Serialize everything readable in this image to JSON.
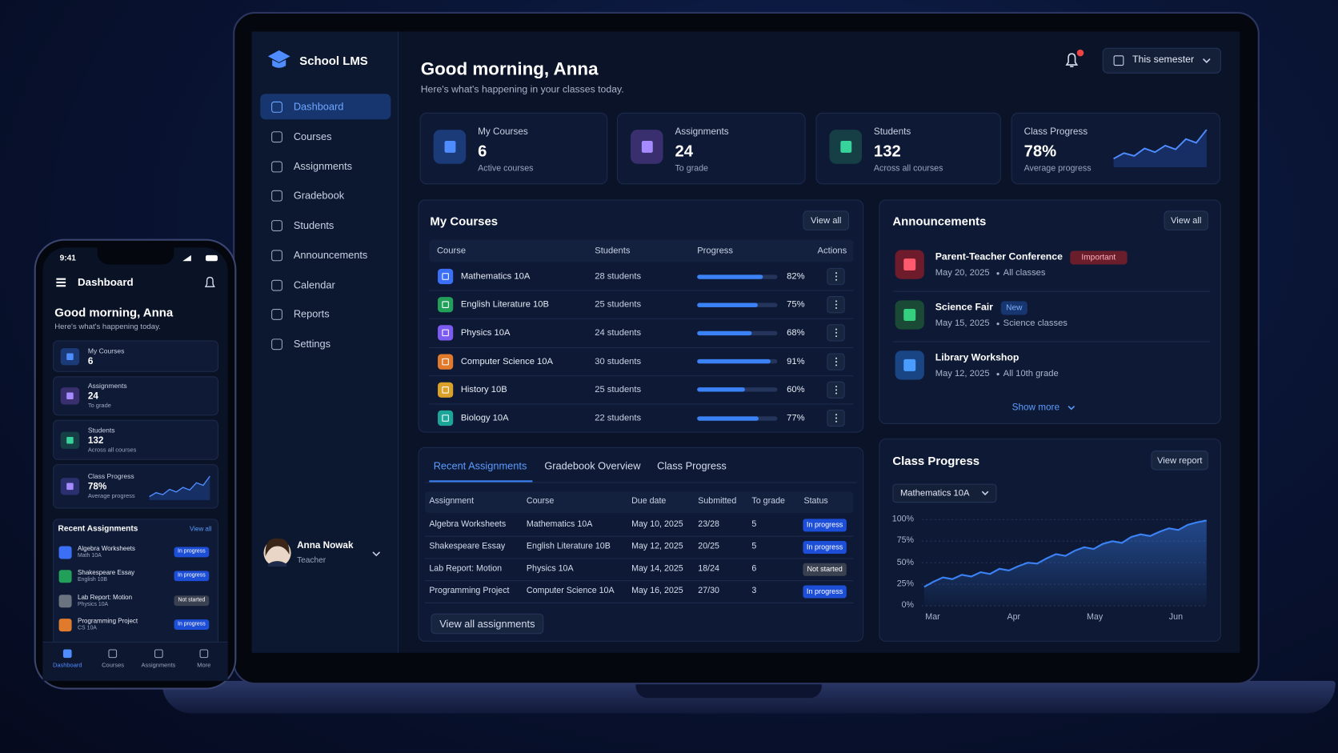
{
  "sidebar": {
    "brand": "School LMS",
    "nav": [
      "Dashboard",
      "Courses",
      "Assignments",
      "Gradebook",
      "Students",
      "Announcements",
      "Calendar",
      "Reports",
      "Settings"
    ],
    "active": 0,
    "user": {
      "name": "Anna Nowak",
      "role": "Teacher"
    }
  },
  "header": {
    "greeting": "Good morning, Anna",
    "subtitle": "Here's what's happening in your classes today.",
    "period": "This semester"
  },
  "stats": [
    {
      "label": "My Courses",
      "value": "6",
      "note": "Active courses",
      "color": "#4f8cff",
      "bg": "#1b3a78"
    },
    {
      "label": "Assignments",
      "value": "24",
      "note": "To grade",
      "color": "#a58bff",
      "bg": "#3a2f6e"
    },
    {
      "label": "Students",
      "value": "132",
      "note": "Across all courses",
      "color": "#37d39a",
      "bg": "#163f45"
    },
    {
      "label": "Class Progress",
      "value": "78%",
      "note": "Average progress",
      "spark": [
        30,
        42,
        36,
        52,
        44,
        58,
        50,
        72,
        64,
        92
      ]
    }
  ],
  "courses": {
    "title": "My Courses",
    "action": "View all",
    "columns": [
      "Course",
      "Students",
      "Progress",
      "Actions"
    ],
    "rows": [
      {
        "name": "Mathematics 10A",
        "students": "28 students",
        "progress": 82,
        "progress_label": "82%",
        "color": "#3b6ff5"
      },
      {
        "name": "English Literature 10B",
        "students": "25 students",
        "progress": 75,
        "progress_label": "75%",
        "color": "#22a05a"
      },
      {
        "name": "Physics 10A",
        "students": "24 students",
        "progress": 68,
        "progress_label": "68%",
        "color": "#7c5cf0"
      },
      {
        "name": "Computer Science 10A",
        "students": "30 students",
        "progress": 91,
        "progress_label": "91%",
        "color": "#e07a2c"
      },
      {
        "name": "History 10B",
        "students": "25 students",
        "progress": 60,
        "progress_label": "60%",
        "color": "#d9a02a"
      },
      {
        "name": "Biology 10A",
        "students": "22 students",
        "progress": 77,
        "progress_label": "77%",
        "color": "#1ea59a"
      }
    ]
  },
  "announcements": {
    "title": "Announcements",
    "action": "View all",
    "more": "Show more",
    "items": [
      {
        "title": "Parent-Teacher Conference",
        "tag": "Important",
        "date": "May 20, 2025",
        "audience": "All classes",
        "color": "#ff5a6e",
        "bg": "#6e1c2b",
        "tag_bg": "#6a1d2a",
        "tag_color": "#ffb3bd"
      },
      {
        "title": "Science Fair",
        "tag": "New",
        "date": "May 15, 2025",
        "audience": "Science classes",
        "color": "#35d07f",
        "bg": "#1a4a35",
        "tag_bg": "#17356e",
        "tag_color": "#7fb0ff"
      },
      {
        "title": "Library Workshop",
        "date": "May 12, 2025",
        "audience": "All 10th grade",
        "color": "#4a9dff",
        "bg": "#1a4585"
      }
    ]
  },
  "assignments": {
    "tabs": [
      "Recent Assignments",
      "Gradebook Overview",
      "Class Progress"
    ],
    "active": 0,
    "columns": [
      "Assignment",
      "Course",
      "Due date",
      "Submitted",
      "To grade",
      "Status"
    ],
    "rows": [
      {
        "cells": [
          "Algebra Worksheets",
          "Mathematics 10A",
          "May 10, 2025",
          "23/28",
          "5"
        ],
        "status": "In progress",
        "status_color": "#1d4ed8"
      },
      {
        "cells": [
          "Shakespeare Essay",
          "English Literature 10B",
          "May 12, 2025",
          "20/25",
          "5"
        ],
        "status": "In progress",
        "status_color": "#1d4ed8"
      },
      {
        "cells": [
          "Lab Report: Motion",
          "Physics 10A",
          "May 14, 2025",
          "18/24",
          "6"
        ],
        "status": "Not started",
        "status_color": "#3a4150"
      },
      {
        "cells": [
          "Programming Project",
          "Computer Science 10A",
          "May 16, 2025",
          "27/30",
          "3"
        ],
        "status": "In progress",
        "status_color": "#1d4ed8"
      }
    ],
    "action": "View all assignments"
  },
  "chart_data": {
    "type": "line",
    "title": "Class Progress",
    "action": "View report",
    "filter": "Mathematics 10A",
    "x_labels": [
      "Mar",
      "Apr",
      "May",
      "Jun"
    ],
    "values": [
      22,
      28,
      33,
      31,
      36,
      34,
      39,
      37,
      43,
      41,
      46,
      50,
      49,
      55,
      60,
      58,
      64,
      68,
      66,
      72,
      75,
      73,
      80,
      83,
      81,
      86,
      90,
      88,
      94,
      97,
      99
    ],
    "color": "#3b82f6",
    "ylim": [
      0,
      100
    ],
    "yticks": [
      {
        "value": 0,
        "label": "0%"
      },
      {
        "value": 25,
        "label": "25%"
      },
      {
        "value": 50,
        "label": "50%"
      },
      {
        "value": 75,
        "label": "75%"
      },
      {
        "value": 100,
        "label": "100%"
      }
    ],
    "grid": true
  },
  "phone": {
    "time": "9:41",
    "title": "Dashboard",
    "greeting": "Good morning, Anna",
    "subtitle": "Here's what's happening today.",
    "stats": [
      {
        "label": "My Courses",
        "value": "6",
        "color": "#4f8cff",
        "bg": "#1b3a78"
      },
      {
        "label": "Assignments",
        "value": "24",
        "note": "To grade",
        "color": "#a58bff",
        "bg": "#3a2f6e"
      },
      {
        "label": "Students",
        "value": "132",
        "note": "Across all courses",
        "color": "#37d39a",
        "bg": "#163f45"
      },
      {
        "label": "Class Progress",
        "value": "78%",
        "note": "Average progress",
        "color": "#a58bff",
        "bg": "#2a2f6e"
      }
    ],
    "recent": {
      "title": "Recent Assignments",
      "action": "View all",
      "rows": [
        {
          "name": "Algebra Worksheets",
          "course": "Math 10A",
          "status": "In progress",
          "color": "#3b6ff5",
          "status_color": "#1d4ed8"
        },
        {
          "name": "Shakespeare Essay",
          "course": "English 10B",
          "status": "In progress",
          "color": "#22a05a",
          "status_color": "#1d4ed8"
        },
        {
          "name": "Lab Report: Motion",
          "course": "Physics 10A",
          "status": "Not started",
          "color": "#6b7280",
          "status_color": "#3a4150"
        },
        {
          "name": "Programming Project",
          "course": "CS 10A",
          "status": "In progress",
          "color": "#e07a2c",
          "status_color": "#1d4ed8"
        }
      ]
    },
    "tabs": [
      "Dashboard",
      "Courses",
      "Assignments",
      "More"
    ],
    "active": 0
  }
}
